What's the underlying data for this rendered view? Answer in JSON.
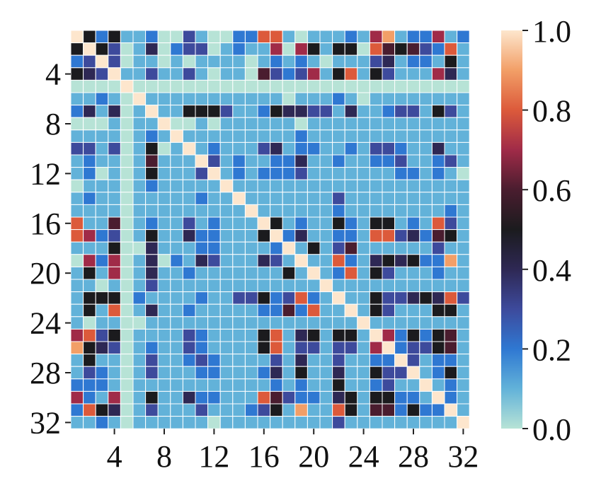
{
  "chart_data": {
    "type": "heatmap",
    "title": "",
    "xlabel": "",
    "ylabel": "",
    "n_rows": 32,
    "n_cols": 32,
    "x_tick_labels": [
      "4",
      "8",
      "12",
      "16",
      "20",
      "24",
      "28",
      "32"
    ],
    "y_tick_labels": [
      "4",
      "8",
      "12",
      "16",
      "20",
      "24",
      "28",
      "32"
    ],
    "colorbar": {
      "min": 0.0,
      "max": 1.0,
      "tick_values": [
        1.0,
        0.8,
        0.6,
        0.4,
        0.2,
        0.0
      ],
      "tick_labels": [
        "1.0",
        "0.8",
        "0.6",
        "0.4",
        "0.2",
        "0.0"
      ],
      "colormap": "icefire",
      "stops": [
        {
          "v": 0.0,
          "color": "#b7e3d6"
        },
        {
          "v": 0.1,
          "color": "#62b2d9"
        },
        {
          "v": 0.2,
          "color": "#2f78d2"
        },
        {
          "v": 0.3,
          "color": "#3d4a9c"
        },
        {
          "v": 0.4,
          "color": "#2e2854"
        },
        {
          "v": 0.5,
          "color": "#1b1b1e"
        },
        {
          "v": 0.6,
          "color": "#4a1d2f"
        },
        {
          "v": 0.7,
          "color": "#a02b48"
        },
        {
          "v": 0.8,
          "color": "#dc5a3b"
        },
        {
          "v": 0.9,
          "color": "#f29f67"
        },
        {
          "v": 1.0,
          "color": "#fde6cd"
        }
      ]
    },
    "values": [
      [
        1.0,
        0.5,
        0.2,
        0.5,
        0.1,
        0.1,
        0.2,
        0.0,
        0.0,
        0.3,
        0.1,
        0.0,
        0.0,
        0.2,
        0.2,
        0.8,
        0.8,
        0.1,
        0.0,
        0.1,
        0.1,
        0.1,
        0.2,
        0.1,
        0.7,
        0.9,
        0.1,
        0.2,
        0.2,
        0.7,
        0.1,
        0.2
      ],
      [
        0.5,
        1.0,
        0.5,
        0.3,
        0.0,
        0.1,
        0.4,
        0.0,
        0.2,
        0.3,
        0.3,
        0.0,
        0.1,
        0.2,
        0.1,
        0.1,
        0.7,
        0.0,
        0.7,
        0.5,
        0.1,
        0.5,
        0.5,
        0.0,
        0.8,
        0.6,
        0.5,
        0.6,
        0.3,
        0.2,
        0.8,
        0.1
      ],
      [
        0.2,
        0.3,
        1.0,
        0.3,
        0.0,
        0.1,
        0.1,
        0.0,
        0.1,
        0.0,
        0.1,
        0.1,
        0.1,
        0.1,
        0.0,
        0.1,
        0.2,
        0.1,
        0.2,
        0.1,
        0.0,
        0.1,
        0.1,
        0.1,
        0.3,
        0.4,
        0.1,
        0.2,
        0.2,
        0.1,
        0.5,
        0.1
      ],
      [
        0.5,
        0.4,
        0.3,
        1.0,
        0.1,
        0.1,
        0.3,
        0.1,
        0.1,
        0.3,
        0.1,
        0.0,
        0.1,
        0.1,
        0.0,
        0.6,
        0.3,
        0.2,
        0.3,
        0.7,
        0.1,
        0.5,
        0.8,
        0.1,
        0.5,
        0.3,
        0.1,
        0.1,
        0.1,
        0.7,
        0.4,
        0.1
      ],
      [
        0.0,
        0.0,
        0.0,
        0.0,
        1.0,
        0.0,
        0.0,
        0.0,
        0.0,
        0.0,
        0.0,
        0.0,
        0.0,
        0.0,
        0.0,
        0.0,
        0.0,
        0.0,
        0.0,
        0.0,
        0.0,
        0.0,
        0.0,
        0.0,
        0.0,
        0.0,
        0.0,
        0.0,
        0.0,
        0.0,
        0.0,
        0.0
      ],
      [
        0.1,
        0.1,
        0.2,
        0.1,
        0.0,
        1.0,
        0.1,
        0.1,
        0.1,
        0.1,
        0.1,
        0.1,
        0.1,
        0.1,
        0.1,
        0.1,
        0.1,
        0.0,
        0.1,
        0.1,
        0.1,
        0.2,
        0.1,
        0.0,
        0.1,
        0.1,
        0.1,
        0.1,
        0.1,
        0.1,
        0.1,
        0.1
      ],
      [
        0.2,
        0.4,
        0.1,
        0.4,
        0.0,
        0.1,
        1.0,
        0.1,
        0.1,
        0.5,
        0.5,
        0.5,
        0.3,
        0.1,
        0.1,
        0.2,
        0.5,
        0.4,
        0.4,
        0.3,
        0.3,
        0.1,
        0.4,
        0.1,
        0.1,
        0.2,
        0.3,
        0.3,
        0.1,
        0.5,
        0.3,
        0.1
      ],
      [
        0.0,
        0.0,
        0.0,
        0.1,
        0.0,
        0.1,
        0.1,
        1.0,
        0.0,
        0.0,
        0.1,
        0.0,
        0.1,
        0.1,
        0.1,
        0.1,
        0.1,
        0.1,
        0.0,
        0.1,
        0.1,
        0.1,
        0.1,
        0.1,
        0.1,
        0.1,
        0.1,
        0.1,
        0.1,
        0.1,
        0.1,
        0.1
      ],
      [
        0.1,
        0.1,
        0.1,
        0.1,
        0.0,
        0.1,
        0.2,
        0.1,
        1.0,
        0.1,
        0.1,
        0.1,
        0.1,
        0.1,
        0.1,
        0.1,
        0.1,
        0.1,
        0.2,
        0.1,
        0.1,
        0.1,
        0.1,
        0.1,
        0.1,
        0.1,
        0.1,
        0.1,
        0.1,
        0.1,
        0.1,
        0.1
      ],
      [
        0.3,
        0.3,
        0.1,
        0.3,
        0.0,
        0.1,
        0.5,
        0.0,
        0.1,
        1.0,
        0.1,
        0.2,
        0.1,
        0.1,
        0.1,
        0.3,
        0.4,
        0.1,
        0.2,
        0.2,
        0.1,
        0.1,
        0.2,
        0.1,
        0.3,
        0.3,
        0.2,
        0.1,
        0.1,
        0.4,
        0.1,
        0.1
      ],
      [
        0.1,
        0.2,
        0.1,
        0.1,
        0.0,
        0.1,
        0.6,
        0.1,
        0.1,
        0.1,
        1.0,
        0.3,
        0.1,
        0.2,
        0.1,
        0.1,
        0.2,
        0.2,
        0.4,
        0.1,
        0.1,
        0.2,
        0.1,
        0.1,
        0.2,
        0.2,
        0.3,
        0.1,
        0.1,
        0.2,
        0.3,
        0.1
      ],
      [
        0.1,
        0.2,
        0.0,
        0.1,
        0.0,
        0.1,
        0.5,
        0.1,
        0.1,
        0.1,
        0.3,
        1.0,
        0.1,
        0.2,
        0.1,
        0.2,
        0.2,
        0.2,
        0.3,
        0.1,
        0.1,
        0.1,
        0.1,
        0.1,
        0.1,
        0.1,
        0.2,
        0.2,
        0.1,
        0.2,
        0.1,
        0.0
      ],
      [
        0.0,
        0.1,
        0.1,
        0.1,
        0.0,
        0.1,
        0.2,
        0.1,
        0.1,
        0.1,
        0.1,
        0.1,
        1.0,
        0.1,
        0.1,
        0.1,
        0.1,
        0.1,
        0.1,
        0.1,
        0.1,
        0.1,
        0.1,
        0.1,
        0.1,
        0.1,
        0.1,
        0.1,
        0.1,
        0.1,
        0.1,
        0.1
      ],
      [
        0.1,
        0.2,
        0.1,
        0.1,
        0.0,
        0.1,
        0.1,
        0.1,
        0.1,
        0.1,
        0.2,
        0.1,
        0.1,
        1.0,
        0.1,
        0.1,
        0.1,
        0.1,
        0.1,
        0.1,
        0.1,
        0.3,
        0.1,
        0.1,
        0.1,
        0.1,
        0.1,
        0.1,
        0.1,
        0.1,
        0.1,
        0.1
      ],
      [
        0.1,
        0.1,
        0.1,
        0.1,
        0.0,
        0.1,
        0.1,
        0.1,
        0.1,
        0.1,
        0.1,
        0.1,
        0.1,
        0.1,
        1.0,
        0.1,
        0.1,
        0.1,
        0.1,
        0.1,
        0.1,
        0.2,
        0.1,
        0.1,
        0.1,
        0.1,
        0.1,
        0.1,
        0.1,
        0.1,
        0.2,
        0.1
      ],
      [
        0.8,
        0.1,
        0.1,
        0.6,
        0.0,
        0.1,
        0.2,
        0.1,
        0.1,
        0.3,
        0.1,
        0.2,
        0.1,
        0.1,
        0.1,
        1.0,
        0.5,
        0.1,
        0.2,
        0.1,
        0.1,
        0.5,
        0.2,
        0.1,
        0.5,
        0.5,
        0.1,
        0.2,
        0.1,
        0.8,
        0.3,
        0.1
      ],
      [
        0.8,
        0.7,
        0.2,
        0.3,
        0.0,
        0.1,
        0.5,
        0.1,
        0.1,
        0.4,
        0.2,
        0.2,
        0.1,
        0.1,
        0.1,
        0.5,
        1.0,
        0.2,
        0.4,
        0.1,
        0.1,
        0.2,
        0.2,
        0.1,
        0.8,
        0.8,
        0.3,
        0.4,
        0.2,
        0.6,
        0.5,
        0.1
      ],
      [
        0.1,
        0.1,
        0.1,
        0.5,
        0.0,
        0.0,
        0.4,
        0.1,
        0.1,
        0.1,
        0.2,
        0.2,
        0.1,
        0.1,
        0.1,
        0.1,
        0.2,
        1.0,
        0.1,
        0.5,
        0.1,
        0.3,
        0.6,
        0.1,
        0.1,
        0.1,
        0.1,
        0.1,
        0.1,
        0.3,
        0.1,
        0.1
      ],
      [
        0.0,
        0.7,
        0.2,
        0.7,
        0.0,
        0.1,
        0.4,
        0.0,
        0.2,
        0.1,
        0.4,
        0.3,
        0.1,
        0.1,
        0.1,
        0.4,
        0.3,
        0.1,
        1.0,
        0.1,
        0.1,
        0.8,
        0.2,
        0.1,
        0.4,
        0.5,
        0.4,
        0.5,
        0.2,
        0.2,
        0.9,
        0.1
      ],
      [
        0.1,
        0.5,
        0.1,
        0.7,
        0.0,
        0.1,
        0.4,
        0.1,
        0.1,
        0.2,
        0.1,
        0.1,
        0.1,
        0.1,
        0.1,
        0.1,
        0.1,
        0.5,
        0.1,
        1.0,
        0.1,
        0.2,
        0.8,
        0.1,
        0.5,
        0.3,
        0.1,
        0.1,
        0.1,
        0.2,
        0.1,
        0.1
      ],
      [
        0.1,
        0.1,
        0.0,
        0.1,
        0.0,
        0.1,
        0.3,
        0.1,
        0.1,
        0.1,
        0.1,
        0.1,
        0.1,
        0.1,
        0.1,
        0.1,
        0.1,
        0.1,
        0.1,
        0.1,
        1.0,
        0.1,
        0.1,
        0.1,
        0.1,
        0.1,
        0.1,
        0.1,
        0.1,
        0.1,
        0.1,
        0.1
      ],
      [
        0.1,
        0.5,
        0.5,
        0.5,
        0.0,
        0.2,
        0.1,
        0.1,
        0.1,
        0.1,
        0.2,
        0.1,
        0.1,
        0.3,
        0.3,
        0.5,
        0.2,
        0.3,
        0.8,
        0.2,
        0.1,
        1.0,
        0.1,
        0.1,
        0.5,
        0.3,
        0.3,
        0.4,
        0.5,
        0.4,
        0.8,
        0.3
      ],
      [
        0.1,
        0.5,
        0.1,
        0.8,
        0.0,
        0.1,
        0.4,
        0.1,
        0.1,
        0.2,
        0.1,
        0.1,
        0.1,
        0.1,
        0.1,
        0.2,
        0.2,
        0.6,
        0.2,
        0.8,
        0.1,
        0.1,
        1.0,
        0.1,
        0.5,
        0.3,
        0.1,
        0.1,
        0.1,
        0.5,
        0.5,
        0.1
      ],
      [
        0.1,
        0.0,
        0.1,
        0.1,
        0.0,
        0.0,
        0.1,
        0.1,
        0.1,
        0.1,
        0.1,
        0.1,
        0.1,
        0.1,
        0.1,
        0.1,
        0.1,
        0.1,
        0.1,
        0.1,
        0.1,
        0.1,
        0.1,
        1.0,
        0.1,
        0.1,
        0.1,
        0.1,
        0.1,
        0.1,
        0.1,
        0.1
      ],
      [
        0.7,
        0.8,
        0.3,
        0.5,
        0.0,
        0.1,
        0.1,
        0.1,
        0.1,
        0.3,
        0.2,
        0.1,
        0.1,
        0.1,
        0.1,
        0.5,
        0.8,
        0.1,
        0.4,
        0.5,
        0.1,
        0.5,
        0.5,
        0.1,
        1.0,
        0.7,
        0.2,
        0.5,
        0.2,
        0.5,
        0.6,
        0.1
      ],
      [
        0.9,
        0.5,
        0.4,
        0.3,
        0.0,
        0.1,
        0.2,
        0.1,
        0.1,
        0.3,
        0.2,
        0.1,
        0.1,
        0.1,
        0.1,
        0.5,
        0.8,
        0.1,
        0.3,
        0.3,
        0.1,
        0.3,
        0.3,
        0.1,
        0.7,
        1.0,
        0.2,
        0.3,
        0.3,
        0.5,
        0.6,
        0.1
      ],
      [
        0.1,
        0.5,
        0.1,
        0.1,
        0.0,
        0.1,
        0.3,
        0.1,
        0.1,
        0.2,
        0.3,
        0.2,
        0.1,
        0.1,
        0.1,
        0.1,
        0.3,
        0.1,
        0.4,
        0.1,
        0.1,
        0.3,
        0.1,
        0.1,
        0.2,
        0.2,
        1.0,
        0.3,
        0.1,
        0.2,
        0.2,
        0.1
      ],
      [
        0.1,
        0.3,
        0.2,
        0.1,
        0.0,
        0.1,
        0.3,
        0.1,
        0.1,
        0.1,
        0.2,
        0.2,
        0.1,
        0.1,
        0.1,
        0.2,
        0.4,
        0.1,
        0.5,
        0.1,
        0.1,
        0.4,
        0.1,
        0.1,
        0.5,
        0.3,
        0.3,
        1.0,
        0.1,
        0.2,
        0.5,
        0.1
      ],
      [
        0.2,
        0.2,
        0.2,
        0.1,
        0.0,
        0.1,
        0.1,
        0.1,
        0.1,
        0.1,
        0.1,
        0.1,
        0.1,
        0.1,
        0.1,
        0.1,
        0.2,
        0.1,
        0.2,
        0.1,
        0.1,
        0.5,
        0.1,
        0.1,
        0.2,
        0.3,
        0.1,
        0.1,
        1.0,
        0.1,
        0.2,
        0.1
      ],
      [
        0.7,
        0.2,
        0.1,
        0.7,
        0.0,
        0.1,
        0.5,
        0.1,
        0.1,
        0.4,
        0.2,
        0.2,
        0.1,
        0.1,
        0.1,
        0.8,
        0.6,
        0.3,
        0.2,
        0.2,
        0.1,
        0.4,
        0.5,
        0.1,
        0.5,
        0.5,
        0.2,
        0.2,
        0.1,
        1.0,
        0.2,
        0.1
      ],
      [
        0.2,
        0.8,
        0.5,
        0.4,
        0.0,
        0.1,
        0.3,
        0.1,
        0.1,
        0.1,
        0.3,
        0.1,
        0.1,
        0.1,
        0.2,
        0.3,
        0.5,
        0.1,
        0.9,
        0.1,
        0.1,
        0.8,
        0.5,
        0.1,
        0.6,
        0.6,
        0.2,
        0.5,
        0.2,
        0.2,
        1.0,
        0.1
      ],
      [
        0.1,
        0.1,
        0.2,
        0.1,
        0.0,
        0.1,
        0.1,
        0.1,
        0.1,
        0.1,
        0.1,
        0.0,
        0.1,
        0.1,
        0.1,
        0.1,
        0.1,
        0.1,
        0.1,
        0.1,
        0.1,
        0.3,
        0.1,
        0.1,
        0.1,
        0.1,
        0.1,
        0.1,
        0.1,
        0.1,
        0.1,
        1.0
      ]
    ]
  }
}
